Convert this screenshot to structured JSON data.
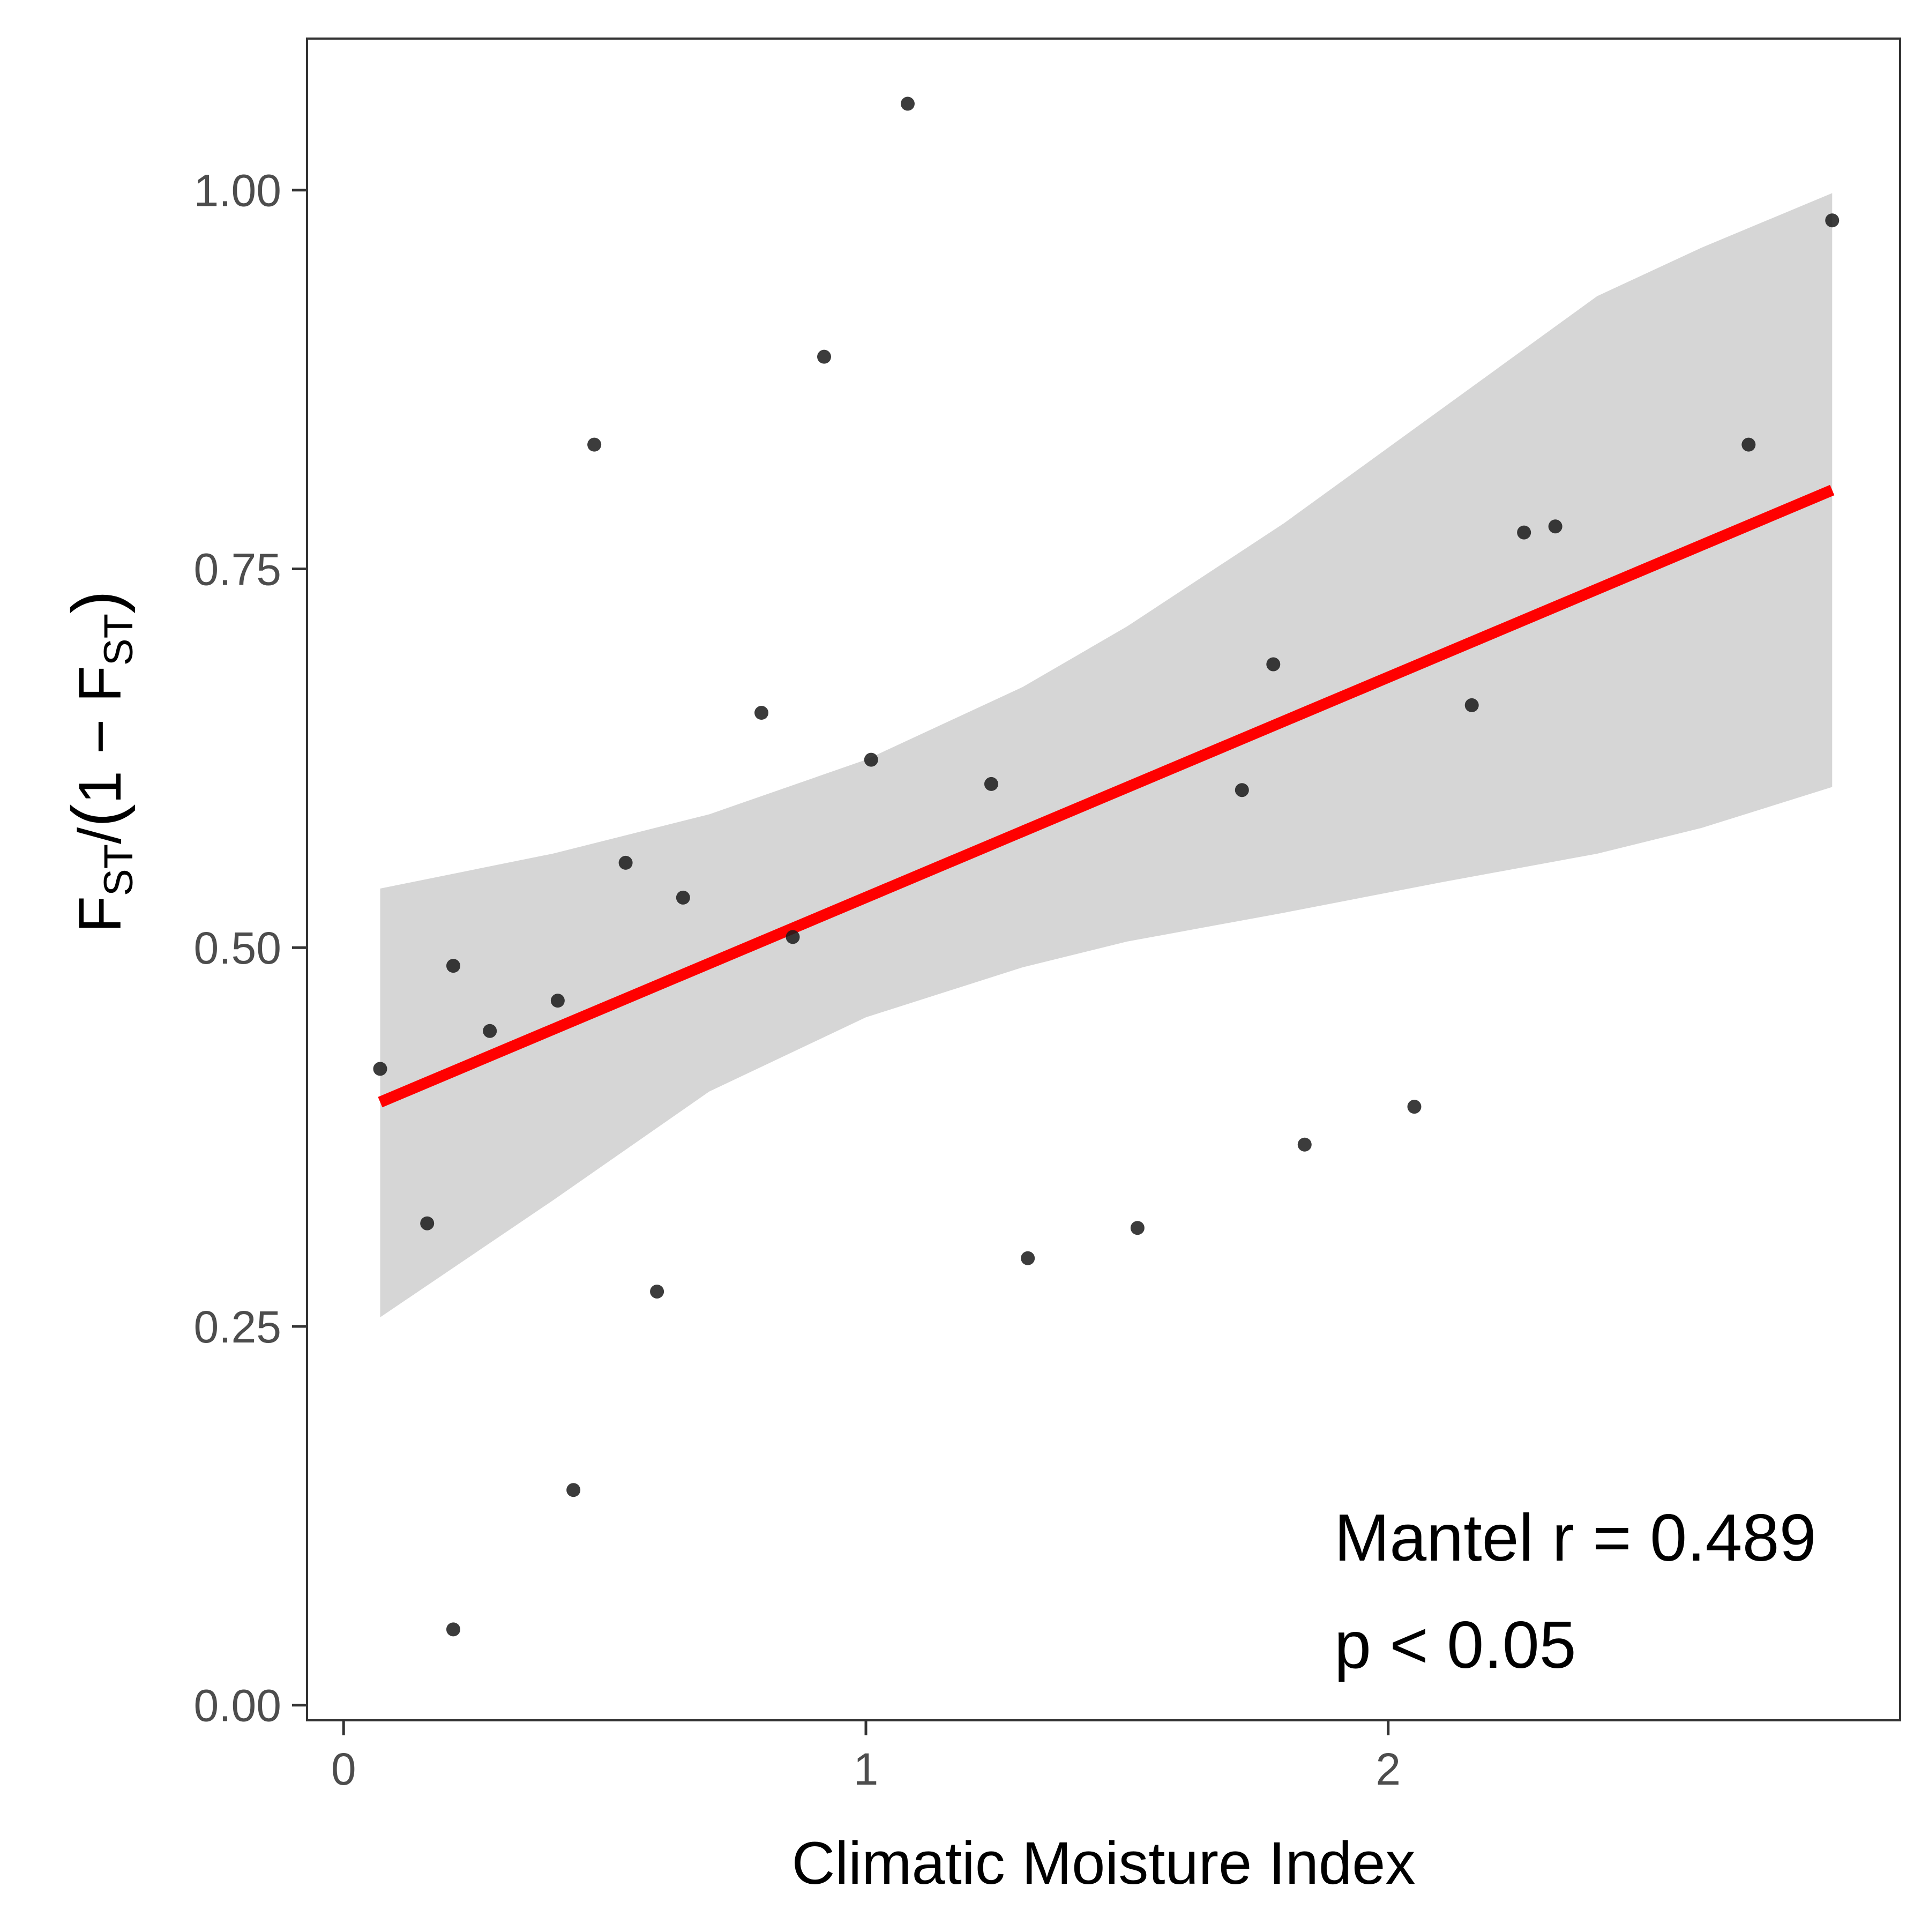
{
  "chart_data": {
    "type": "scatter",
    "title": "",
    "xlabel": "Climatic Moisture Index",
    "ylabel": {
      "F": "F",
      "sub": "ST",
      "slash": "/",
      "open": "(",
      "one_minus": "1 − F",
      "sub2": "ST",
      "close": ")"
    },
    "xlim": [
      -0.07,
      2.98
    ],
    "ylim": [
      -0.01,
      1.1
    ],
    "x_ticks": [
      0,
      1,
      2
    ],
    "x_tick_labels": [
      "0",
      "1",
      "2"
    ],
    "y_ticks": [
      0,
      0.25,
      0.5,
      0.75,
      1
    ],
    "y_tick_labels": [
      "0.00",
      "0.25",
      "0.50",
      "0.75",
      "1.00"
    ],
    "grid": false,
    "points": [
      {
        "x": 0.07,
        "y": 0.42
      },
      {
        "x": 0.16,
        "y": 0.318
      },
      {
        "x": 0.21,
        "y": 0.488
      },
      {
        "x": 0.21,
        "y": 0.05
      },
      {
        "x": 0.28,
        "y": 0.445
      },
      {
        "x": 0.41,
        "y": 0.465
      },
      {
        "x": 0.44,
        "y": 0.142
      },
      {
        "x": 0.48,
        "y": 0.832
      },
      {
        "x": 0.54,
        "y": 0.556
      },
      {
        "x": 0.6,
        "y": 0.273
      },
      {
        "x": 0.65,
        "y": 0.533
      },
      {
        "x": 0.8,
        "y": 0.655
      },
      {
        "x": 0.86,
        "y": 0.507
      },
      {
        "x": 0.92,
        "y": 0.89
      },
      {
        "x": 1.01,
        "y": 0.624
      },
      {
        "x": 1.08,
        "y": 1.057
      },
      {
        "x": 1.24,
        "y": 0.608
      },
      {
        "x": 1.31,
        "y": 0.295
      },
      {
        "x": 1.52,
        "y": 0.315
      },
      {
        "x": 1.72,
        "y": 0.604
      },
      {
        "x": 1.78,
        "y": 0.687
      },
      {
        "x": 1.84,
        "y": 0.37
      },
      {
        "x": 2.05,
        "y": 0.395
      },
      {
        "x": 2.16,
        "y": 0.66
      },
      {
        "x": 2.26,
        "y": 0.774
      },
      {
        "x": 2.32,
        "y": 0.778
      },
      {
        "x": 2.69,
        "y": 0.832
      },
      {
        "x": 2.85,
        "y": 0.98
      }
    ],
    "regression": {
      "x0": 0.07,
      "y0": 0.398,
      "x1": 2.85,
      "y1": 0.802
    },
    "confidence_band": {
      "x": [
        0.07,
        0.4,
        0.7,
        1.0,
        1.3,
        1.5,
        1.8,
        2.1,
        2.4,
        2.6,
        2.85
      ],
      "upper": [
        0.539,
        0.562,
        0.588,
        0.624,
        0.672,
        0.712,
        0.78,
        0.855,
        0.93,
        0.962,
        0.998
      ],
      "lower": [
        0.256,
        0.333,
        0.405,
        0.454,
        0.487,
        0.504,
        0.523,
        0.543,
        0.562,
        0.579,
        0.606
      ]
    },
    "colors": {
      "points": "#1a1a1a",
      "line": "#ff0000",
      "band": "#d6d6d6",
      "axis": "#333333",
      "tick_label": "#4d4d4d"
    },
    "annotations": [
      "Mantel r = 0.489",
      "p < 0.05"
    ]
  }
}
